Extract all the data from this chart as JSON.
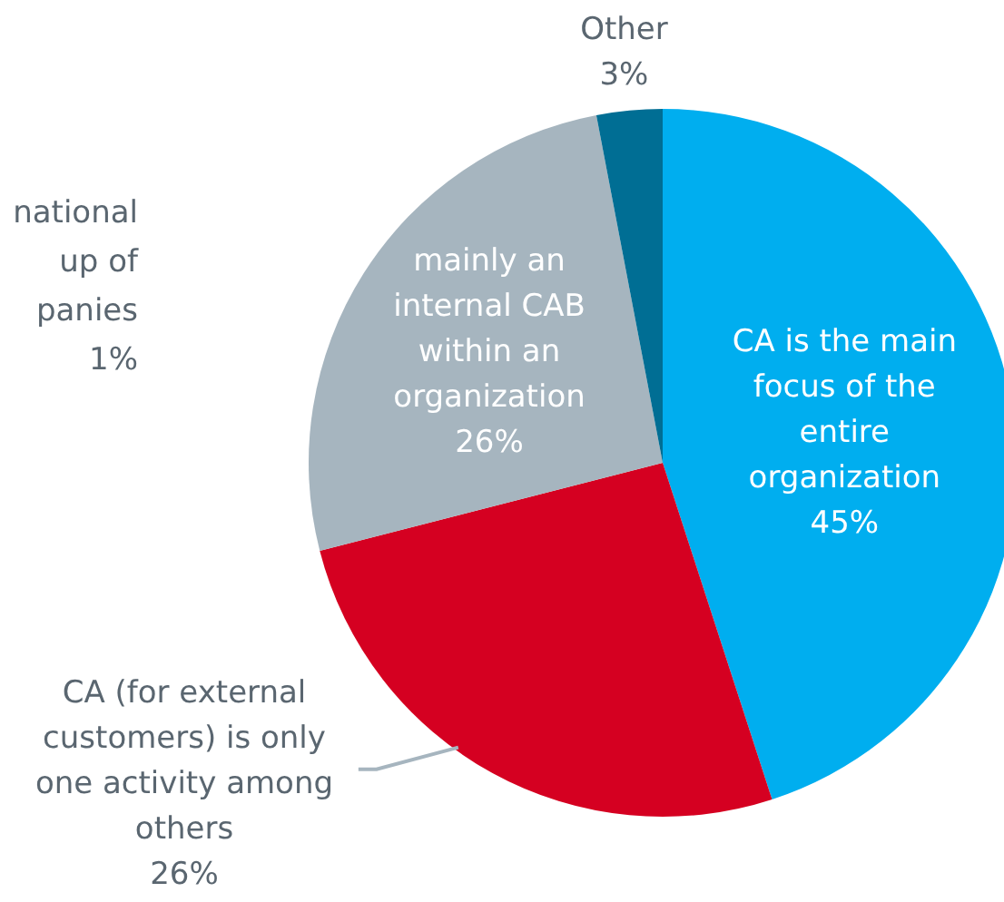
{
  "chart_data": {
    "type": "pie",
    "categories": [
      "CA is the main focus of the entire organization",
      "CA (for external customers) is only one activity among others",
      "mainly an internal CAB within an organization",
      "Other"
    ],
    "values": [
      45,
      26,
      26,
      3
    ],
    "value_labels": [
      "45%",
      "26%",
      "26%",
      "3%"
    ],
    "colors": [
      "#00aeef",
      "#d50021",
      "#a6b5bf",
      "#006e94"
    ],
    "annotations": [
      "national\nup of\npanies\n1%"
    ]
  }
}
